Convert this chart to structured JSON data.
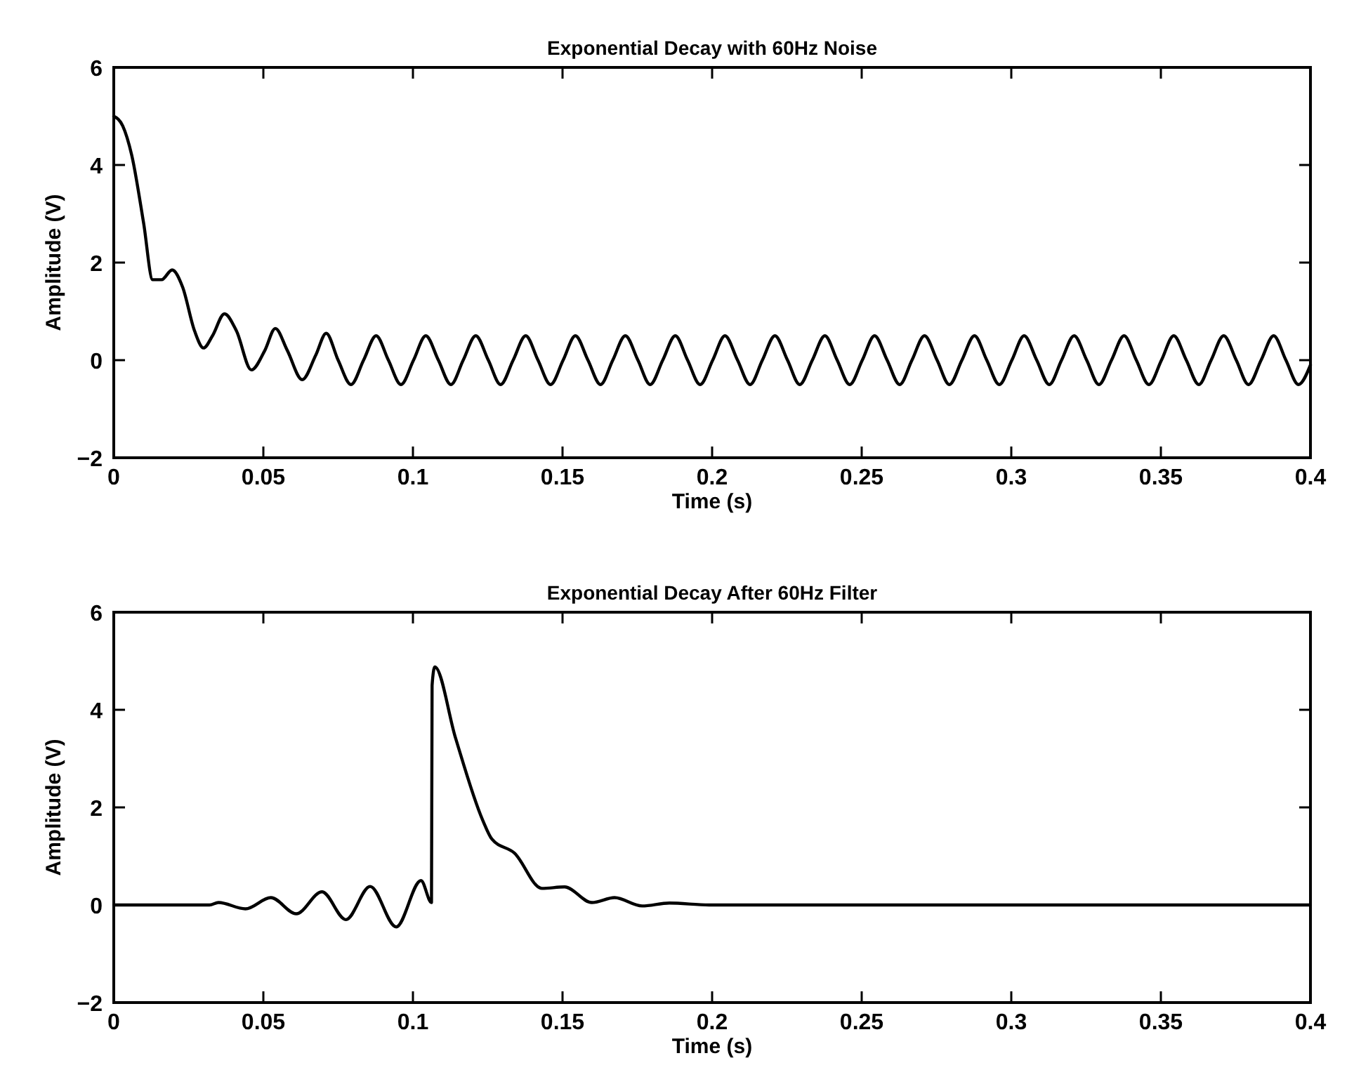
{
  "chart_data": [
    {
      "type": "line",
      "title": "Exponential Decay with 60Hz Noise",
      "xlabel": "Time (s)",
      "ylabel": "Amplitude (V)",
      "xlim": [
        0,
        0.4
      ],
      "xticks": [
        0,
        0.05,
        0.1,
        0.15,
        0.2,
        0.25,
        0.3,
        0.35,
        0.4
      ],
      "ylim": [
        -2,
        6
      ],
      "yticks": [
        -2,
        0,
        2,
        4,
        6
      ],
      "series": [
        {
          "color": "#000000",
          "x": [
            0,
            0.003,
            0.006,
            0.01,
            0.013,
            0.016,
            0.0195,
            0.023,
            0.027,
            0.03,
            0.033,
            0.037,
            0.041,
            0.046,
            0.0505,
            0.054,
            0.058,
            0.063,
            0.0675,
            0.071,
            0.075,
            0.0793,
            0.0835,
            0.0877,
            0.0918,
            0.096,
            0.1002,
            0.1043,
            0.1085,
            0.1127,
            0.1168,
            0.121,
            0.1252,
            0.1293,
            0.1335,
            0.1377,
            0.1418,
            0.146,
            0.1502,
            0.1543,
            0.1585,
            0.1627,
            0.1668,
            0.171,
            0.1752,
            0.1793,
            0.1835,
            0.1877,
            0.1918,
            0.196,
            0.2002,
            0.2043,
            0.2085,
            0.2127,
            0.2168,
            0.221,
            0.2252,
            0.2293,
            0.2335,
            0.2377,
            0.2418,
            0.246,
            0.2502,
            0.2543,
            0.2585,
            0.2627,
            0.2668,
            0.271,
            0.2752,
            0.2793,
            0.2835,
            0.2877,
            0.2918,
            0.296,
            0.3002,
            0.3043,
            0.3085,
            0.3127,
            0.3168,
            0.321,
            0.3252,
            0.3293,
            0.3335,
            0.3377,
            0.3418,
            0.346,
            0.3502,
            0.3543,
            0.3585,
            0.3627,
            0.3668,
            0.371,
            0.3752,
            0.3793,
            0.3835,
            0.3877,
            0.3918,
            0.396,
            0.4
          ],
          "values": [
            5,
            4.8,
            4.2,
            2.8,
            1.65,
            1.65,
            1.85,
            1.5,
            0.6,
            0.25,
            0.5,
            0.95,
            0.6,
            -0.2,
            0.2,
            0.65,
            0.2,
            -0.4,
            0.1,
            0.55,
            0,
            -0.5,
            0,
            0.5,
            0,
            -0.5,
            0,
            0.5,
            0,
            -0.5,
            0,
            0.5,
            0,
            -0.5,
            0,
            0.5,
            0,
            -0.5,
            0,
            0.5,
            0,
            -0.5,
            0,
            0.5,
            0,
            -0.5,
            0,
            0.5,
            0,
            -0.5,
            0,
            0.5,
            0,
            -0.5,
            0,
            0.5,
            0,
            -0.5,
            0,
            0.5,
            0,
            -0.5,
            0,
            0.5,
            0,
            -0.5,
            0,
            0.5,
            0,
            -0.5,
            0,
            0.5,
            0,
            -0.5,
            0,
            0.5,
            0,
            -0.5,
            0,
            0.5,
            0,
            -0.5,
            0,
            0.5,
            0,
            -0.5,
            0,
            0.5,
            0,
            -0.5,
            0,
            0.5,
            0,
            -0.5,
            0,
            0.5,
            0,
            -0.5,
            -0.1
          ]
        }
      ]
    },
    {
      "type": "line",
      "title": "Exponential Decay After 60Hz Filter",
      "xlabel": "Time (s)",
      "ylabel": "Amplitude (V)",
      "xlim": [
        0,
        0.4
      ],
      "xticks": [
        0,
        0.05,
        0.1,
        0.15,
        0.2,
        0.25,
        0.3,
        0.35,
        0.4
      ],
      "ylim": [
        -2,
        6
      ],
      "yticks": [
        -2,
        0,
        2,
        4,
        6
      ],
      "series": [
        {
          "color": "#000000",
          "x": [
            0,
            0.032,
            0.035,
            0.044,
            0.0525,
            0.061,
            0.0696,
            0.0776,
            0.0857,
            0.0944,
            0.1027,
            0.1062,
            0.1064,
            0.1073,
            0.1142,
            0.1233,
            0.1264,
            0.134,
            0.1431,
            0.1507,
            0.1598,
            0.1674,
            0.1766,
            0.1857,
            0.199,
            0.4
          ],
          "values": [
            0,
            0,
            0.05,
            -0.08,
            0.15,
            -0.18,
            0.27,
            -0.3,
            0.38,
            -0.45,
            0.5,
            0.05,
            4.5,
            4.88,
            3.43,
            1.74,
            1.35,
            1.06,
            0.34,
            0.37,
            0.05,
            0.15,
            -0.02,
            0.04,
            0,
            0
          ]
        }
      ]
    }
  ]
}
